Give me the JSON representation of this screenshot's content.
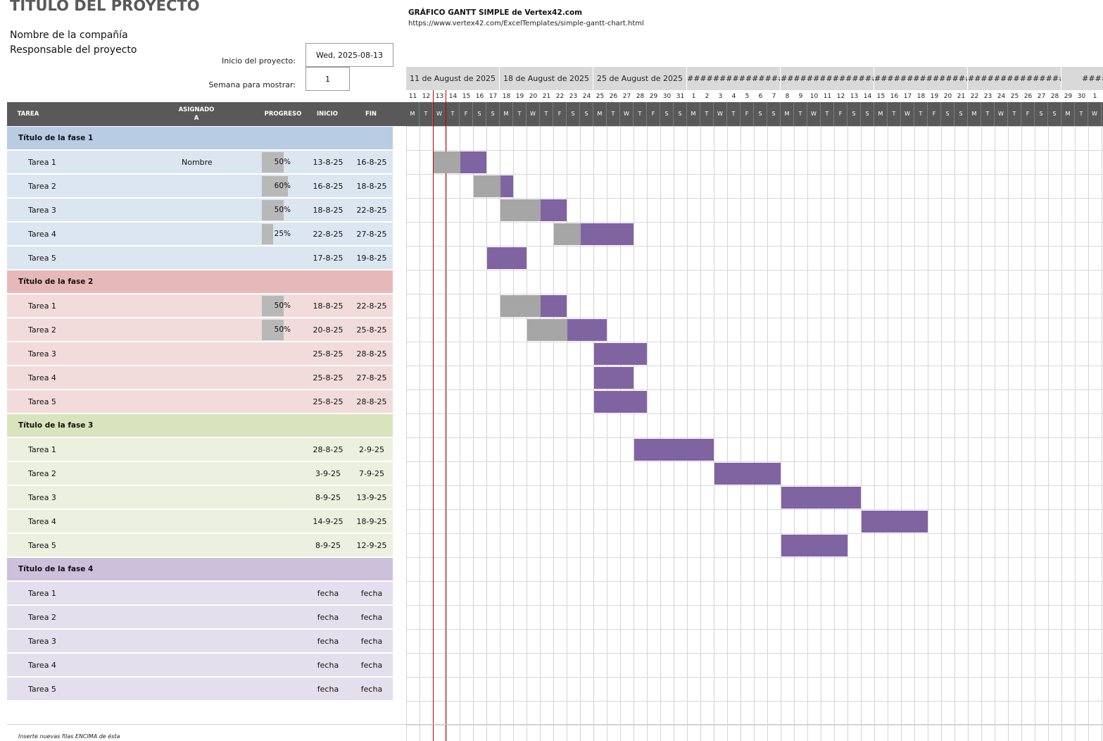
{
  "project": {
    "title": "TÍTULO DEL PROYECTO",
    "company": "Nombre de la compañía",
    "lead": "Responsable del proyecto",
    "start_label": "Inicio del proyecto:",
    "start_value": "Wed, 2025-08-13",
    "week_label": "Semana para mostrar:",
    "week_value": "1"
  },
  "credit": {
    "title": "GRÁFICO GANTT SIMPLE de Vertex42.com",
    "url": "https://www.vertex42.com/ExcelTemplates/simple-gantt-chart.html"
  },
  "headers": {
    "task": "TAREA",
    "assigned": "ASIGNADO A",
    "progress": "PROGRESO",
    "start": "INICIO",
    "end": "FIN"
  },
  "timeline": {
    "weeks": [
      "11 de August de 2025",
      "18 de August de 2025",
      "25 de August de 2025",
      "################",
      "################",
      "################",
      "################",
      "########"
    ],
    "day_numbers": [
      "11",
      "12",
      "13",
      "14",
      "15",
      "16",
      "17",
      "18",
      "19",
      "20",
      "21",
      "22",
      "23",
      "24",
      "25",
      "26",
      "27",
      "28",
      "29",
      "30",
      "31",
      "1",
      "2",
      "3",
      "4",
      "5",
      "6",
      "7",
      "8",
      "9",
      "10",
      "11",
      "12",
      "13",
      "14",
      "15",
      "16",
      "17",
      "18",
      "19",
      "20",
      "21",
      "22",
      "23",
      "24",
      "25",
      "26",
      "27",
      "28",
      "29",
      "30",
      "1"
    ],
    "day_letters": [
      "M",
      "T",
      "W",
      "T",
      "F",
      "S",
      "S",
      "M",
      "T",
      "W",
      "T",
      "F",
      "S",
      "S",
      "M",
      "T",
      "W",
      "T",
      "F",
      "S",
      "S",
      "M",
      "T",
      "W",
      "T",
      "F",
      "S",
      "S",
      "M",
      "T",
      "W",
      "T",
      "F",
      "S",
      "S",
      "M",
      "T",
      "W",
      "T",
      "F",
      "S",
      "S",
      "M",
      "T",
      "W",
      "T",
      "F",
      "S",
      "S",
      "M",
      "T",
      "W"
    ]
  },
  "colors": {
    "header_dark": "#595959",
    "bar": "#8064a2",
    "progress": "#a6a6a6",
    "today": "#c00000"
  },
  "phases": [
    {
      "title": "Título de la fase 1",
      "head_color": "#b8cce4",
      "row_color": "#dce6f1",
      "tasks": [
        {
          "name": "Tarea 1",
          "assigned": "Nombre",
          "progress": "50%",
          "start": "13-8-25",
          "end": "16-8-25",
          "pct": 0.5,
          "d0": 2,
          "len": 4
        },
        {
          "name": "Tarea 2",
          "assigned": "",
          "progress": "60%",
          "start": "16-8-25",
          "end": "18-8-25",
          "pct": 0.6,
          "d0": 5,
          "len": 3
        },
        {
          "name": "Tarea 3",
          "assigned": "",
          "progress": "50%",
          "start": "18-8-25",
          "end": "22-8-25",
          "pct": 0.5,
          "d0": 7,
          "len": 5
        },
        {
          "name": "Tarea 4",
          "assigned": "",
          "progress": "25%",
          "start": "22-8-25",
          "end": "27-8-25",
          "pct": 0.25,
          "d0": 11,
          "len": 6
        },
        {
          "name": "Tarea 5",
          "assigned": "",
          "progress": "",
          "start": "17-8-25",
          "end": "19-8-25",
          "pct": 0,
          "d0": 6,
          "len": 3
        }
      ]
    },
    {
      "title": "Título de la fase 2",
      "head_color": "#e6b9b8",
      "row_color": "#f2dcdb",
      "tasks": [
        {
          "name": "Tarea 1",
          "assigned": "",
          "progress": "50%",
          "start": "18-8-25",
          "end": "22-8-25",
          "pct": 0.5,
          "d0": 7,
          "len": 5
        },
        {
          "name": "Tarea 2",
          "assigned": "",
          "progress": "50%",
          "start": "20-8-25",
          "end": "25-8-25",
          "pct": 0.5,
          "d0": 9,
          "len": 6
        },
        {
          "name": "Tarea 3",
          "assigned": "",
          "progress": "",
          "start": "25-8-25",
          "end": "28-8-25",
          "pct": 0,
          "d0": 14,
          "len": 4
        },
        {
          "name": "Tarea 4",
          "assigned": "",
          "progress": "",
          "start": "25-8-25",
          "end": "27-8-25",
          "pct": 0,
          "d0": 14,
          "len": 3
        },
        {
          "name": "Tarea 5",
          "assigned": "",
          "progress": "",
          "start": "25-8-25",
          "end": "28-8-25",
          "pct": 0,
          "d0": 14,
          "len": 4
        }
      ]
    },
    {
      "title": "Título de la fase 3",
      "head_color": "#d8e4bc",
      "row_color": "#ebf1de",
      "tasks": [
        {
          "name": "Tarea 1",
          "assigned": "",
          "progress": "",
          "start": "28-8-25",
          "end": "2-9-25",
          "pct": 0,
          "d0": 17,
          "len": 6
        },
        {
          "name": "Tarea 2",
          "assigned": "",
          "progress": "",
          "start": "3-9-25",
          "end": "7-9-25",
          "pct": 0,
          "d0": 23,
          "len": 5
        },
        {
          "name": "Tarea 3",
          "assigned": "",
          "progress": "",
          "start": "8-9-25",
          "end": "13-9-25",
          "pct": 0,
          "d0": 28,
          "len": 6
        },
        {
          "name": "Tarea 4",
          "assigned": "",
          "progress": "",
          "start": "14-9-25",
          "end": "18-9-25",
          "pct": 0,
          "d0": 34,
          "len": 5
        },
        {
          "name": "Tarea 5",
          "assigned": "",
          "progress": "",
          "start": "8-9-25",
          "end": "12-9-25",
          "pct": 0,
          "d0": 28,
          "len": 5
        }
      ]
    },
    {
      "title": "Título de la fase 4",
      "head_color": "#ccc0da",
      "row_color": "#e4dfec",
      "tasks": [
        {
          "name": "Tarea 1",
          "assigned": "",
          "progress": "",
          "start": "fecha",
          "end": "fecha",
          "pct": 0,
          "d0": -1,
          "len": 0
        },
        {
          "name": "Tarea 2",
          "assigned": "",
          "progress": "",
          "start": "fecha",
          "end": "fecha",
          "pct": 0,
          "d0": -1,
          "len": 0
        },
        {
          "name": "Tarea 3",
          "assigned": "",
          "progress": "",
          "start": "fecha",
          "end": "fecha",
          "pct": 0,
          "d0": -1,
          "len": 0
        },
        {
          "name": "Tarea 4",
          "assigned": "",
          "progress": "",
          "start": "fecha",
          "end": "fecha",
          "pct": 0,
          "d0": -1,
          "len": 0
        },
        {
          "name": "Tarea 5",
          "assigned": "",
          "progress": "",
          "start": "fecha",
          "end": "fecha",
          "pct": 0,
          "d0": -1,
          "len": 0
        }
      ]
    }
  ],
  "footer_note": "Inserte nuevas filas ENCIMA de ésta"
}
